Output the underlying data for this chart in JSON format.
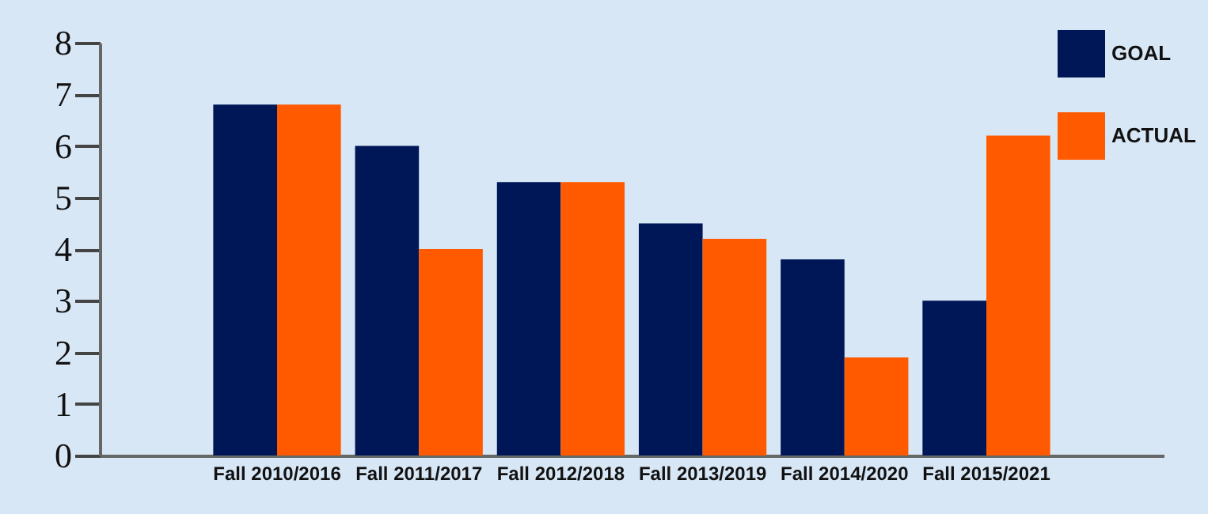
{
  "chart_data": {
    "type": "bar",
    "categories": [
      "Fall 2010/2016",
      "Fall 2011/2017",
      "Fall 2012/2018",
      "Fall 2013/2019",
      "Fall 2014/2020",
      "Fall 2015/2021"
    ],
    "series": [
      {
        "name": "GOAL",
        "color": "#001757",
        "values": [
          6.8,
          6.0,
          5.3,
          4.5,
          3.8,
          3.0
        ]
      },
      {
        "name": "ACTUAL",
        "color": "#ff5a00",
        "values": [
          6.8,
          4.0,
          5.3,
          4.2,
          1.9,
          6.2
        ]
      }
    ],
    "ylim": [
      0,
      8
    ],
    "yticks": [
      0,
      1,
      2,
      3,
      4,
      5,
      6,
      7,
      8
    ],
    "grid": false,
    "legend": "top right"
  }
}
